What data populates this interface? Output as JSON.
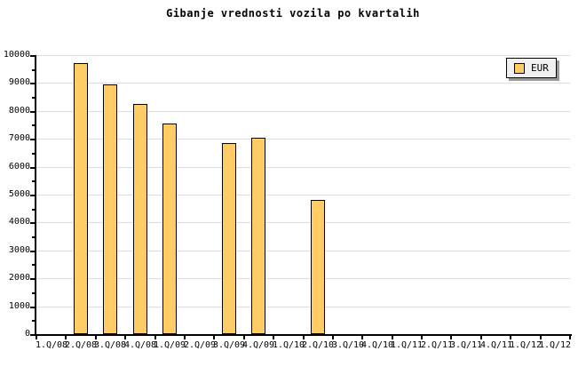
{
  "chart_data": {
    "type": "bar",
    "title": "Gibanje vrednosti vozila po kvartalih",
    "categories": [
      "1.Q/08",
      "2.Q/08",
      "3.Q/08",
      "4.Q/08",
      "1.Q/09",
      "2.Q/09",
      "3.Q/09",
      "4.Q/09",
      "1.Q/10",
      "2.Q/10",
      "3.Q/10",
      "4.Q/10",
      "1.Q/11",
      "2.Q/11",
      "3.Q/11",
      "4.Q/11",
      "1.Q/12",
      "1.Q/12"
    ],
    "series": [
      {
        "name": "EUR",
        "values": [
          null,
          9700,
          8950,
          8250,
          7550,
          null,
          6850,
          7050,
          null,
          4800,
          null,
          null,
          null,
          null,
          null,
          null,
          null,
          null
        ]
      }
    ],
    "xlabel": "",
    "ylabel": "",
    "ylim": [
      0,
      10000
    ],
    "ytick_labels": [
      "0",
      "1000",
      "2000",
      "3000",
      "4000",
      "5000",
      "6000",
      "7000",
      "8000",
      "9000",
      "10000"
    ],
    "ytick_values": [
      0,
      1000,
      2000,
      3000,
      4000,
      5000,
      6000,
      7000,
      8000,
      9000,
      10000
    ],
    "ytick_minor_interval": 500,
    "grid": "horizontal",
    "legend": {
      "position": "top-right",
      "entries": [
        {
          "label": "EUR",
          "color": "#FFCC66"
        }
      ]
    },
    "colors": {
      "bar_fill": "#FFCC66",
      "bar_border": "#000000",
      "grid": "#DDDDDD",
      "axis": "#000000",
      "text": "#000000",
      "background": "#FFFFFF",
      "legend_bg": "#F0F0F0",
      "legend_shadow": "#999999"
    }
  }
}
